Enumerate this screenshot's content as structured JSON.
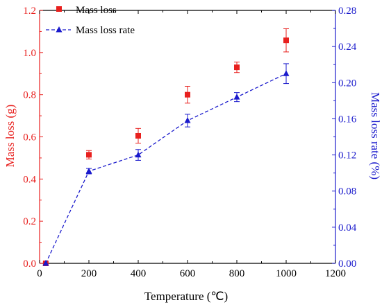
{
  "chart_data": {
    "type": "scatter",
    "xlabel": "Temperature (℃)",
    "ylabel": "Mass loss (g)",
    "y2label": "Mass loss rate (%)",
    "xlim": [
      0,
      1200
    ],
    "ylim": [
      0,
      1.2
    ],
    "y2lim": [
      0,
      0.28
    ],
    "xticks": [
      "0",
      "200",
      "400",
      "600",
      "800",
      "1000",
      "1200"
    ],
    "yticks": [
      "0.0",
      "0.2",
      "0.4",
      "0.6",
      "0.8",
      "1.0",
      "1.2"
    ],
    "y2ticks": [
      "0.00",
      "0.04",
      "0.08",
      "0.12",
      "0.16",
      "0.20",
      "0.24",
      "0.28"
    ],
    "grid": false,
    "legend": "top-left",
    "colors": {
      "left_axis": "#e8201e",
      "right_axis": "#1a1acc",
      "mass_loss": "#e8201e",
      "rate": "#1a1acc"
    },
    "series": [
      {
        "name": "Mass loss",
        "axis": "left",
        "marker": "square",
        "line": "none",
        "x": [
          25,
          200,
          400,
          600,
          800,
          1000
        ],
        "y": [
          0,
          0.515,
          0.605,
          0.8,
          0.93,
          1.058
        ],
        "err": [
          0,
          0.02,
          0.035,
          0.04,
          0.025,
          0.055
        ]
      },
      {
        "name": "Mass loss rate",
        "axis": "right",
        "marker": "triangle",
        "line": "dashed",
        "x": [
          25,
          200,
          400,
          600,
          800,
          1000
        ],
        "y": [
          0,
          0.102,
          0.12,
          0.158,
          0.184,
          0.21
        ],
        "err": [
          0,
          0.003,
          0.006,
          0.007,
          0.005,
          0.011
        ]
      }
    ]
  }
}
